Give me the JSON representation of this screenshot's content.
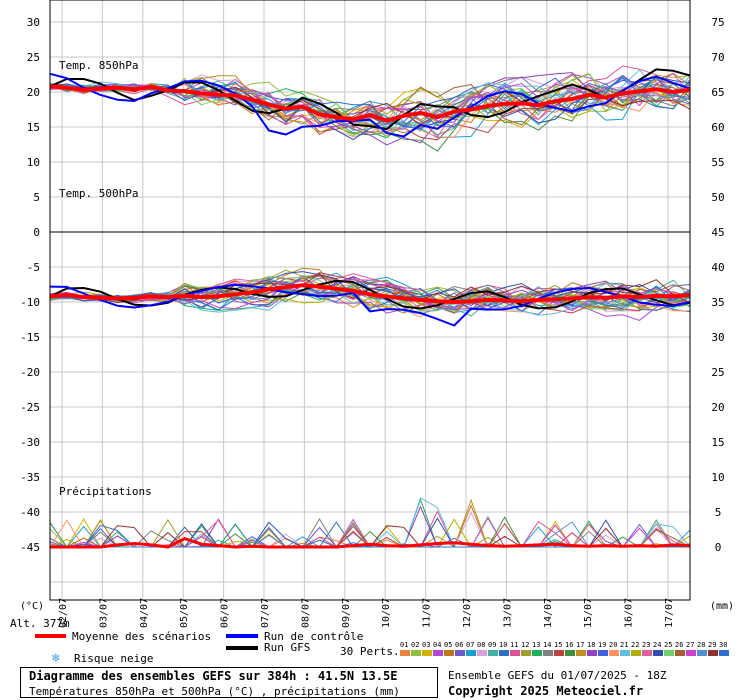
{
  "chart_data": {
    "type": "line",
    "title": "Diagramme des ensembles GEFS sur 384h : 41.5N 13.5E",
    "subtitle": "Températures 850hPa et 500hPa (°C) , précipitations (mm)",
    "run_label": "Ensemble GEFS du 01/07/2025 - 18Z",
    "copyright": "Copyright 2025 Meteociel.fr",
    "altitude_label": "Alt. 377m",
    "x_tick_labels": [
      "02/07",
      "03/07",
      "04/07",
      "05/07",
      "06/07",
      "07/07",
      "08/07",
      "09/07",
      "10/07",
      "11/07",
      "12/07",
      "13/07",
      "14/07",
      "15/07",
      "16/07",
      "17/07"
    ],
    "left_axis": {
      "label": "(°C)",
      "ticks": [
        30,
        25,
        20,
        15,
        10,
        5,
        0,
        -5,
        -10,
        -15,
        -20,
        -25,
        -30,
        -35,
        -40,
        -45
      ],
      "ylim": [
        -45,
        30
      ]
    },
    "right_axis": {
      "label": "(mm)",
      "ticks": [
        75,
        70,
        65,
        60,
        55,
        50,
        45,
        40,
        35,
        30,
        25,
        20,
        15,
        10,
        5,
        0
      ],
      "ylim": [
        0,
        75
      ]
    },
    "section_labels": {
      "t850": "Temp. 850hPa",
      "t500": "Temp. 500hPa",
      "precip": "Précipitations"
    },
    "legend": {
      "mean": "Moyenne des scénarios",
      "control": "Run de contrôle",
      "gfs": "Run GFS",
      "snow": "Risque neige",
      "perts_label": "30 Perts."
    },
    "member_colors": [
      "#e8823c",
      "#8fbf3f",
      "#d4b000",
      "#b04ad0",
      "#c07820",
      "#6a5acd",
      "#1a9fd0",
      "#d9a0e0",
      "#40b0a0",
      "#2f6fbf",
      "#e05090",
      "#a0a030",
      "#20b060",
      "#808080",
      "#c04040",
      "#409040",
      "#c09020",
      "#9040c0",
      "#4060e0",
      "#ff9060",
      "#60c0e0",
      "#b0b000",
      "#e060a0",
      "#3050b0",
      "#70d070",
      "#a06030",
      "#d040d0",
      "#5090d0",
      "#903030",
      "#3070d0"
    ],
    "member_colors_ids": [
      "01",
      "02",
      "03",
      "04",
      "05",
      "06",
      "07",
      "08",
      "09",
      "10",
      "11",
      "12",
      "13",
      "14",
      "15",
      "16",
      "17",
      "18",
      "19",
      "20",
      "21",
      "22",
      "23",
      "24",
      "25",
      "26",
      "27",
      "28",
      "29",
      "30"
    ],
    "series_mean_color": "#ff0000",
    "series_control_color": "#0000ff",
    "series_gfs_color": "#000000",
    "t850_mean": [
      20.8,
      20.6,
      20.3,
      20.5,
      20.6,
      20.4,
      20.7,
      20.2,
      20.1,
      19.8,
      19.6,
      19.5,
      18.9,
      18.2,
      17.6,
      17.9,
      16.8,
      16.4,
      16.1,
      16.7,
      15.9,
      16.6,
      17.0,
      16.4,
      17.2,
      17.5,
      18.0,
      18.3,
      18.4,
      18.1,
      18.7,
      19.0,
      19.6,
      19.2,
      19.8,
      20.1,
      20.4,
      20.0,
      20.3
    ],
    "t500_mean": [
      -9.2,
      -9.0,
      -9.3,
      -9.4,
      -9.5,
      -9.4,
      -9.2,
      -9.3,
      -9.1,
      -9.3,
      -9.2,
      -8.9,
      -8.6,
      -8.2,
      -7.9,
      -7.6,
      -7.8,
      -8.1,
      -8.4,
      -8.9,
      -9.2,
      -9.5,
      -9.7,
      -9.9,
      -10.0,
      -9.9,
      -9.7,
      -9.8,
      -9.9,
      -9.7,
      -9.6,
      -9.5,
      -9.3,
      -9.4,
      -9.2,
      -9.3,
      -9.1,
      -9.2,
      -9.0
    ],
    "precip_mean": [
      0,
      0,
      0,
      0,
      0.3,
      0.5,
      0.3,
      0,
      1.2,
      0.4,
      0.2,
      0,
      0.1,
      0,
      0,
      0,
      0,
      0,
      0.2,
      0.4,
      0.2,
      0.1,
      0.3,
      0.5,
      0.6,
      0.4,
      0.2,
      0.1,
      0.2,
      0.3,
      0.4,
      0.2,
      0.1,
      0.2,
      0.1,
      0.2,
      0.1,
      0.3,
      0.2
    ]
  }
}
